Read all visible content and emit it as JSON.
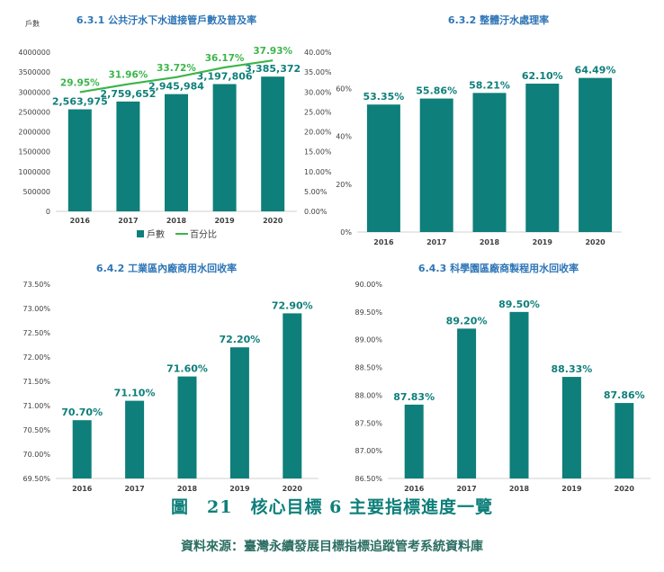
{
  "chart_data": [
    {
      "id": "c1",
      "type": "bar",
      "title": "6.3.1 公共汙水下水道接管戶數及普及率",
      "y_unit_label": "戶數",
      "categories": [
        "2016",
        "2017",
        "2018",
        "2019",
        "2020"
      ],
      "series": [
        {
          "name": "戶數",
          "values": [
            2563975,
            2759652,
            2945984,
            3197806,
            3385372
          ],
          "labels": [
            "2,563,975",
            "2,759,652",
            "2,945,984",
            "3,197,806",
            "3,385,372"
          ]
        },
        {
          "name": "百分比",
          "values": [
            29.95,
            31.96,
            33.72,
            36.17,
            37.93
          ],
          "labels": [
            "29.95%",
            "31.96%",
            "33.72%",
            "36.17%",
            "37.93%"
          ]
        }
      ],
      "ylim": [
        0,
        4000000
      ],
      "yticks": [
        "0",
        "500000",
        "1000000",
        "1500000",
        "2000000",
        "2500000",
        "3000000",
        "3500000",
        "4000000"
      ],
      "y2lim": [
        0,
        40
      ],
      "y2ticks": [
        "0.00%",
        "5.00%",
        "10.00%",
        "15.00%",
        "20.00%",
        "25.00%",
        "30.00%",
        "35.00%",
        "40.00%"
      ],
      "legend": "bottom",
      "colors": {
        "bar": "#0E7F7A",
        "line": "#3BB54A"
      }
    },
    {
      "id": "c2",
      "type": "bar",
      "title": "6.3.2 整體汙水處理率",
      "categories": [
        "2016",
        "2017",
        "2018",
        "2019",
        "2020"
      ],
      "values": [
        53.35,
        55.86,
        58.21,
        62.1,
        64.49
      ],
      "labels": [
        "53.35%",
        "55.86%",
        "58.21%",
        "62.10%",
        "64.49%"
      ],
      "ylim": [
        0,
        70
      ],
      "yticks": [
        "0%",
        "20%",
        "40%",
        "60%"
      ],
      "colors": {
        "bar": "#0E7F7A"
      }
    },
    {
      "id": "c3",
      "type": "bar",
      "title": "6.4.2 工業區內廠商用水回收率",
      "categories": [
        "2016",
        "2017",
        "2018",
        "2019",
        "2020"
      ],
      "values": [
        70.7,
        71.1,
        71.6,
        72.2,
        72.9
      ],
      "labels": [
        "70.70%",
        "71.10%",
        "71.60%",
        "72.20%",
        "72.90%"
      ],
      "ylim": [
        69.5,
        73.5
      ],
      "yticks": [
        "69.50%",
        "70.00%",
        "70.50%",
        "71.00%",
        "71.50%",
        "72.00%",
        "72.50%",
        "73.00%",
        "73.50%"
      ],
      "colors": {
        "bar": "#0E7F7A"
      }
    },
    {
      "id": "c4",
      "type": "bar",
      "title": "6.4.3 科學園區廠商製程用水回收率",
      "categories": [
        "2016",
        "2017",
        "2018",
        "2019",
        "2020"
      ],
      "values": [
        87.83,
        89.2,
        89.5,
        88.33,
        87.86
      ],
      "labels": [
        "87.83%",
        "89.20%",
        "89.50%",
        "88.33%",
        "87.86%"
      ],
      "ylim": [
        86.5,
        90.0
      ],
      "yticks": [
        "86.50%",
        "87.00%",
        "87.50%",
        "88.00%",
        "88.50%",
        "89.00%",
        "89.50%",
        "90.00%"
      ],
      "colors": {
        "bar": "#0E7F7A"
      }
    }
  ],
  "caption": "圖　21　核心目標 6 主要指標進度一覽",
  "source": "資料來源：臺灣永續發展目標指標追蹤管考系統資料庫"
}
